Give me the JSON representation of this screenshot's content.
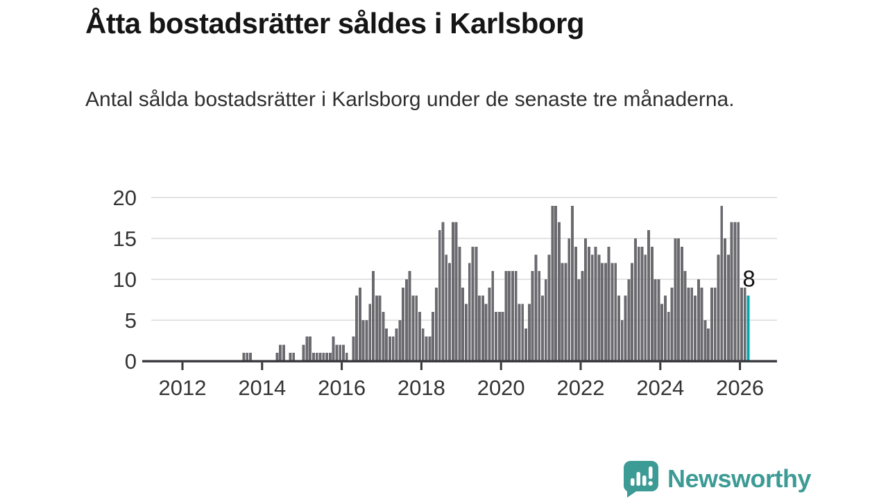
{
  "header": {
    "title": "Åtta bostadsrätter såldes i Karlsborg",
    "subtitle": "Antal sålda bostadsrätter i Karlsborg under de senaste tre månaderna."
  },
  "chart_data": {
    "type": "bar",
    "title": "Åtta bostadsrätter såldes i Karlsborg",
    "xlabel": "",
    "ylabel": "",
    "ylim": [
      0,
      20
    ],
    "y_ticks": [
      0,
      5,
      10,
      15,
      20
    ],
    "x_tick_labels": [
      "2012",
      "2014",
      "2016",
      "2018",
      "2020",
      "2022",
      "2024",
      "2026"
    ],
    "grid": true,
    "start_month": "2011-01",
    "end_month": "2026-03",
    "values": [
      0,
      0,
      0,
      0,
      0,
      0,
      0,
      0,
      0,
      0,
      0,
      0,
      0,
      0,
      0,
      0,
      0,
      0,
      0,
      0,
      0,
      0,
      0,
      0,
      0,
      0,
      0,
      0,
      0,
      0,
      1,
      1,
      1,
      0,
      0,
      0,
      0,
      0,
      0,
      0,
      1,
      2,
      2,
      0,
      1,
      1,
      0,
      0,
      2,
      3,
      3,
      1,
      1,
      1,
      1,
      1,
      1,
      3,
      2,
      2,
      2,
      1,
      0,
      3,
      8,
      9,
      5,
      5,
      7,
      11,
      8,
      8,
      6,
      4,
      3,
      3,
      4,
      5,
      9,
      10,
      11,
      8,
      8,
      6,
      4,
      3,
      3,
      6,
      9,
      16,
      17,
      13,
      12,
      17,
      17,
      14,
      9,
      7,
      12,
      14,
      14,
      8,
      8,
      7,
      9,
      11,
      6,
      6,
      6,
      11,
      11,
      11,
      11,
      7,
      7,
      4,
      7,
      11,
      13,
      11,
      8,
      10,
      13,
      19,
      19,
      17,
      12,
      12,
      15,
      19,
      14,
      10,
      11,
      15,
      14,
      13,
      14,
      13,
      12,
      12,
      14,
      12,
      12,
      8,
      5,
      8,
      10,
      12,
      15,
      14,
      14,
      13,
      16,
      14,
      10,
      10,
      7,
      8,
      6,
      9,
      15,
      15,
      14,
      11,
      9,
      9,
      8,
      10,
      9,
      5,
      4,
      9,
      9,
      13,
      19,
      15,
      13,
      17,
      17,
      17,
      9,
      9,
      8
    ],
    "highlight_index": 182,
    "highlight_label": "8",
    "bar_color": "#6a6a6f",
    "highlight_color": "#00a8b0",
    "grid_color": "#e3e3e3",
    "axis_color": "#37373c",
    "tick_label_color": "#333333",
    "annotation_color": "#111111"
  },
  "logo": {
    "text": "Newsworthy",
    "color": "#3d9b95",
    "icon": "speech-bubble-bar-chart-icon"
  }
}
